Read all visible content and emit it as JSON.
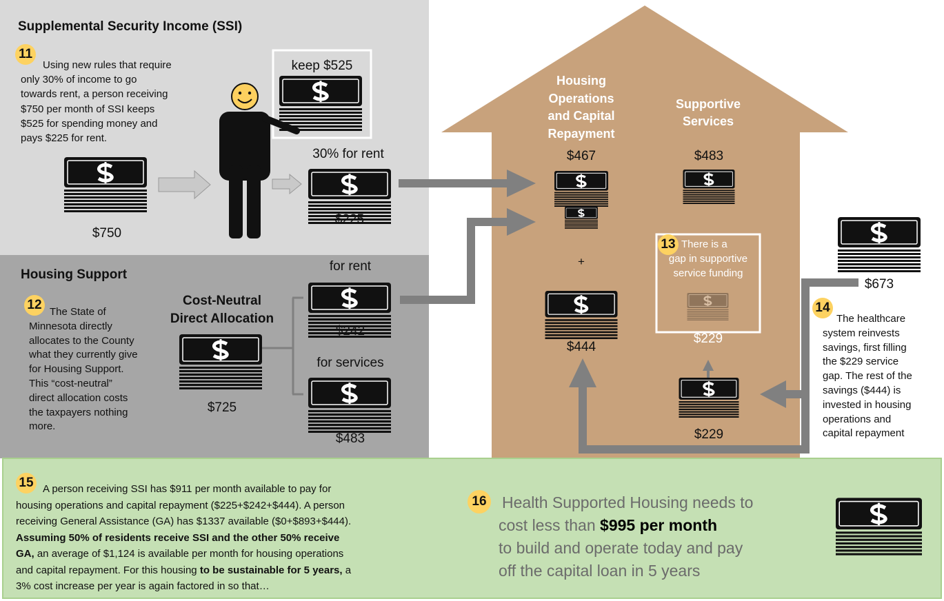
{
  "ssi": {
    "title": "Supplemental Security Income (SSI)",
    "step": "11",
    "text": [
      "Using new rules that require",
      "only 30% of income to go",
      "towards rent, a person receiving",
      "$750 per month of SSI keeps",
      "$525 for spending money and",
      "pays $225 for rent."
    ],
    "keep_label": "keep $525",
    "rent_label": "30% for rent",
    "income": "$750",
    "rent": "$225"
  },
  "housing_support": {
    "title": "Housing Support",
    "step": "12",
    "text": [
      "The State of",
      "Minnesota directly",
      "allocates to the County",
      "what they currently give",
      "for Housing Support.",
      "This “cost-neutral”",
      "direct allocation costs",
      "the taxpayers nothing",
      "more."
    ],
    "allocation_title": [
      "Cost-Neutral",
      "Direct Allocation"
    ],
    "allocation": "$725",
    "rent_label": "for rent",
    "rent": "$242",
    "services_label": "for services",
    "services": "$483"
  },
  "house": {
    "operations_title": [
      "Housing",
      "Operations",
      "and Capital",
      "Repayment"
    ],
    "operations": "$467",
    "plus": "+",
    "operations_added": "$444",
    "services_title": [
      "Supportive",
      "Services"
    ],
    "services": "$483",
    "gap_step": "13",
    "gap_text": [
      "There is a",
      "gap in supportive",
      "service funding"
    ],
    "gap": "$229",
    "gap_filled": "$229"
  },
  "healthcare": {
    "savings": "$673",
    "step": "14",
    "text": [
      "The healthcare",
      "system reinvests",
      "savings, first filling",
      "the $229 service",
      "gap. The rest of the",
      "savings ($444) is",
      "invested in housing",
      "operations and",
      "capital repayment"
    ]
  },
  "summary": {
    "step": "15",
    "text": [
      [
        {
          "text": "A person receiving SSI has $911 per month available to pay for"
        }
      ],
      [
        {
          "text": "housing operations and capital repayment ($225+$242+$444). A person"
        }
      ],
      [
        {
          "text": "receiving General Assistance (GA) has $1337 available ($0+$893+$444)."
        }
      ],
      [
        {
          "text": "Assuming 50% of residents receive SSI and the other 50% receive",
          "bold": true
        }
      ],
      [
        {
          "text": "GA,",
          "bold": true
        },
        {
          "text": " an average of $1,124 is available per month for housing operations"
        }
      ],
      [
        {
          "text": "and capital repayment. For this housing "
        },
        {
          "text": "to be sustainable for 5 years,",
          "bold": true
        },
        {
          "text": " a"
        }
      ],
      [
        {
          "text": "3% cost increase per year is again factored in so that…"
        }
      ]
    ],
    "conclusion_step": "16",
    "conclusion": [
      [
        {
          "text": "Health Supported Housing needs to"
        }
      ],
      [
        {
          "text": "cost less than "
        },
        {
          "text": "$995 per month",
          "bold": true,
          "color": "#000000"
        }
      ],
      [
        {
          "text": "to build and operate today and pay"
        }
      ],
      [
        {
          "text": "off the capital loan in 5 years"
        }
      ]
    ]
  }
}
